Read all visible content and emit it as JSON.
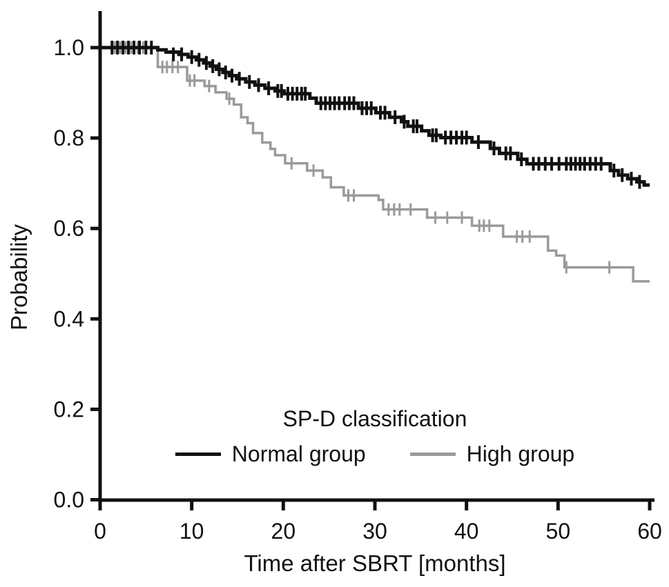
{
  "figure": {
    "background": "#ffffff",
    "axis_color": "#111111"
  },
  "axes": {
    "x_label": "Time after SBRT [months]",
    "y_label": "Probability"
  },
  "legend": {
    "title": "SP-D classification"
  },
  "chart_data": {
    "type": "line",
    "variant": "kaplan_meier_step_function",
    "title": "",
    "xlabel": "Time after SBRT [months]",
    "ylabel": "Probability",
    "xlim": [
      0,
      60
    ],
    "ylim": [
      0.0,
      1.0
    ],
    "x_ticks": [
      0,
      10,
      20,
      30,
      40,
      50,
      60
    ],
    "y_ticks": [
      0.0,
      0.2,
      0.4,
      0.6,
      0.8,
      1.0
    ],
    "grid": false,
    "legend_title": "SP-D classification",
    "legend_position": "inside-bottom-center",
    "series": [
      {
        "name": "Normal group",
        "color": "#111111",
        "steps": [
          [
            0,
            1.0
          ],
          [
            6.3,
            0.995
          ],
          [
            7.2,
            0.99
          ],
          [
            8.6,
            0.985
          ],
          [
            9.6,
            0.979
          ],
          [
            10.5,
            0.973
          ],
          [
            11.3,
            0.966
          ],
          [
            12.0,
            0.959
          ],
          [
            12.7,
            0.952
          ],
          [
            13.4,
            0.945
          ],
          [
            14.1,
            0.938
          ],
          [
            14.9,
            0.931
          ],
          [
            15.9,
            0.924
          ],
          [
            16.9,
            0.917
          ],
          [
            18.0,
            0.91
          ],
          [
            19.1,
            0.904
          ],
          [
            20.1,
            0.898
          ],
          [
            22.9,
            0.888
          ],
          [
            23.6,
            0.877
          ],
          [
            28.2,
            0.866
          ],
          [
            30.1,
            0.856
          ],
          [
            31.6,
            0.846
          ],
          [
            32.9,
            0.836
          ],
          [
            33.6,
            0.826
          ],
          [
            35.1,
            0.816
          ],
          [
            35.9,
            0.806
          ],
          [
            37.2,
            0.801
          ],
          [
            40.6,
            0.791
          ],
          [
            42.6,
            0.777
          ],
          [
            43.6,
            0.766
          ],
          [
            45.6,
            0.753
          ],
          [
            46.6,
            0.743
          ],
          [
            55.7,
            0.728
          ],
          [
            56.6,
            0.718
          ],
          [
            57.6,
            0.71
          ],
          [
            58.6,
            0.703
          ],
          [
            59.4,
            0.696
          ],
          [
            60,
            0.696
          ]
        ],
        "censor_marks": [
          [
            1.3,
            1.0
          ],
          [
            1.9,
            1.0
          ],
          [
            2.5,
            1.0
          ],
          [
            3.1,
            1.0
          ],
          [
            3.7,
            1.0
          ],
          [
            4.3,
            1.0
          ],
          [
            5.0,
            1.0
          ],
          [
            5.6,
            1.0
          ],
          [
            8.0,
            0.985
          ],
          [
            8.9,
            0.985
          ],
          [
            10.0,
            0.979
          ],
          [
            10.8,
            0.973
          ],
          [
            11.6,
            0.966
          ],
          [
            12.3,
            0.959
          ],
          [
            13.0,
            0.952
          ],
          [
            13.7,
            0.945
          ],
          [
            14.4,
            0.938
          ],
          [
            15.2,
            0.931
          ],
          [
            16.3,
            0.924
          ],
          [
            17.3,
            0.917
          ],
          [
            18.4,
            0.91
          ],
          [
            19.4,
            0.904
          ],
          [
            19.8,
            0.904
          ],
          [
            20.5,
            0.898
          ],
          [
            21.0,
            0.898
          ],
          [
            21.5,
            0.898
          ],
          [
            22.0,
            0.898
          ],
          [
            22.4,
            0.898
          ],
          [
            24.1,
            0.877
          ],
          [
            24.6,
            0.877
          ],
          [
            25.1,
            0.877
          ],
          [
            25.6,
            0.877
          ],
          [
            26.1,
            0.877
          ],
          [
            26.7,
            0.877
          ],
          [
            27.2,
            0.877
          ],
          [
            27.7,
            0.877
          ],
          [
            28.6,
            0.866
          ],
          [
            29.1,
            0.866
          ],
          [
            29.6,
            0.866
          ],
          [
            30.6,
            0.856
          ],
          [
            31.1,
            0.856
          ],
          [
            32.2,
            0.846
          ],
          [
            33.2,
            0.836
          ],
          [
            34.2,
            0.826
          ],
          [
            34.6,
            0.826
          ],
          [
            36.3,
            0.806
          ],
          [
            36.7,
            0.806
          ],
          [
            37.7,
            0.801
          ],
          [
            38.3,
            0.801
          ],
          [
            38.9,
            0.801
          ],
          [
            39.5,
            0.801
          ],
          [
            40.0,
            0.801
          ],
          [
            41.3,
            0.791
          ],
          [
            43.0,
            0.777
          ],
          [
            44.3,
            0.766
          ],
          [
            44.8,
            0.766
          ],
          [
            46.0,
            0.753
          ],
          [
            47.3,
            0.743
          ],
          [
            47.9,
            0.743
          ],
          [
            48.6,
            0.743
          ],
          [
            49.3,
            0.743
          ],
          [
            50.1,
            0.743
          ],
          [
            50.9,
            0.743
          ],
          [
            51.4,
            0.743
          ],
          [
            51.9,
            0.743
          ],
          [
            52.4,
            0.743
          ],
          [
            52.9,
            0.743
          ],
          [
            53.5,
            0.743
          ],
          [
            54.1,
            0.743
          ],
          [
            54.7,
            0.743
          ],
          [
            56.1,
            0.728
          ],
          [
            57.0,
            0.718
          ],
          [
            58.0,
            0.71
          ],
          [
            58.9,
            0.703
          ]
        ]
      },
      {
        "name": "High group",
        "color": "#9a9a9a",
        "steps": [
          [
            0,
            1.0
          ],
          [
            6.3,
            0.957
          ],
          [
            9.5,
            0.927
          ],
          [
            11.4,
            0.915
          ],
          [
            12.6,
            0.901
          ],
          [
            13.8,
            0.887
          ],
          [
            14.6,
            0.874
          ],
          [
            15.4,
            0.846
          ],
          [
            16.1,
            0.833
          ],
          [
            16.7,
            0.811
          ],
          [
            17.7,
            0.79
          ],
          [
            18.6,
            0.776
          ],
          [
            19.1,
            0.762
          ],
          [
            20.2,
            0.744
          ],
          [
            22.6,
            0.728
          ],
          [
            24.3,
            0.713
          ],
          [
            25.2,
            0.691
          ],
          [
            26.6,
            0.673
          ],
          [
            30.4,
            0.663
          ],
          [
            30.9,
            0.642
          ],
          [
            35.7,
            0.624
          ],
          [
            40.6,
            0.606
          ],
          [
            44.0,
            0.582
          ],
          [
            48.9,
            0.551
          ],
          [
            49.8,
            0.54
          ],
          [
            50.7,
            0.514
          ],
          [
            58.2,
            0.483
          ],
          [
            60,
            0.483
          ]
        ],
        "censor_marks": [
          [
            1.6,
            1.0
          ],
          [
            2.2,
            1.0
          ],
          [
            2.8,
            1.0
          ],
          [
            3.4,
            1.0
          ],
          [
            4.1,
            1.0
          ],
          [
            4.7,
            1.0
          ],
          [
            6.8,
            0.957
          ],
          [
            7.3,
            0.957
          ],
          [
            7.9,
            0.957
          ],
          [
            8.5,
            0.957
          ],
          [
            9.8,
            0.927
          ],
          [
            10.3,
            0.927
          ],
          [
            11.9,
            0.915
          ],
          [
            14.1,
            0.887
          ],
          [
            20.9,
            0.744
          ],
          [
            23.3,
            0.728
          ],
          [
            27.1,
            0.673
          ],
          [
            27.7,
            0.673
          ],
          [
            31.5,
            0.642
          ],
          [
            32.1,
            0.642
          ],
          [
            32.7,
            0.642
          ],
          [
            33.9,
            0.642
          ],
          [
            36.6,
            0.624
          ],
          [
            37.9,
            0.624
          ],
          [
            39.5,
            0.624
          ],
          [
            41.4,
            0.606
          ],
          [
            41.9,
            0.606
          ],
          [
            42.5,
            0.606
          ],
          [
            45.5,
            0.582
          ],
          [
            46.1,
            0.582
          ],
          [
            46.9,
            0.582
          ],
          [
            50.9,
            0.514
          ],
          [
            55.6,
            0.514
          ]
        ]
      }
    ]
  }
}
